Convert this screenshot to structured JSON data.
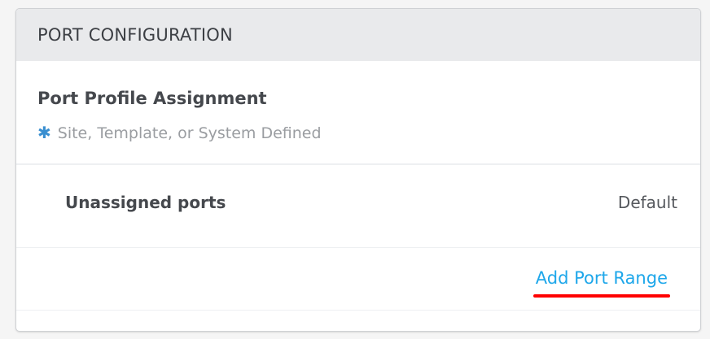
{
  "panel": {
    "title": "PORT CONFIGURATION"
  },
  "section": {
    "title": "Port Profile Assignment",
    "subtitle": "Site, Template, or System Defined",
    "subtitle_icon": "asterisk-icon"
  },
  "rows": [
    {
      "label": "Unassigned ports",
      "value": "Default"
    }
  ],
  "actions": {
    "add_port_range": "Add Port Range"
  },
  "colors": {
    "link": "#1ea7ea",
    "asterisk": "#3a8fd0",
    "highlight_underline": "#ff0000",
    "header_bg": "#e9eaec"
  }
}
